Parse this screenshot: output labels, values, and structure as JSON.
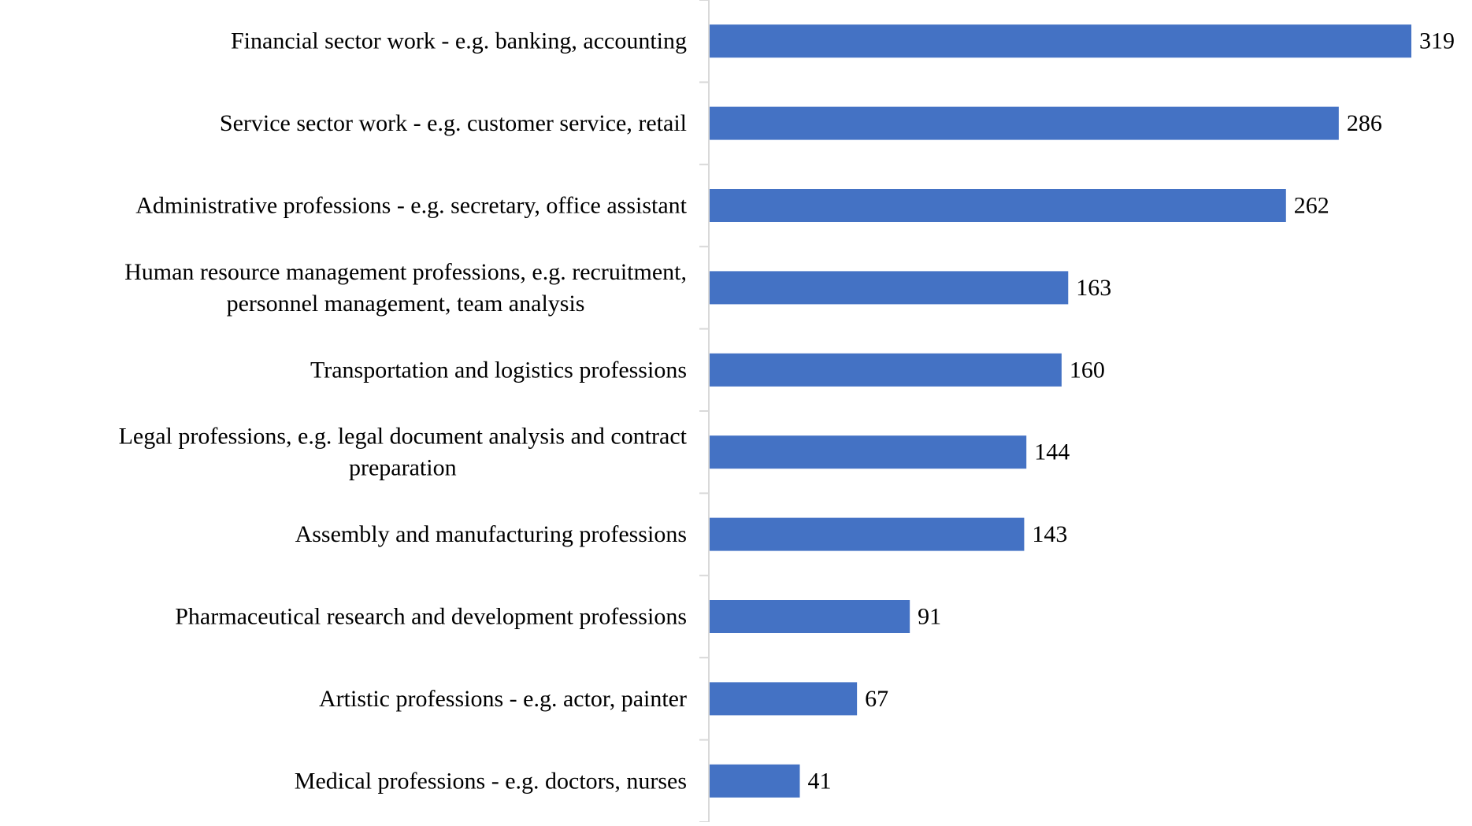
{
  "chart_data": {
    "type": "bar",
    "orientation": "horizontal",
    "title": "",
    "xlabel": "",
    "ylabel": "",
    "grid": false,
    "legend": "none",
    "bar_color": "#4472C4",
    "xlim": [
      0,
      319
    ],
    "categories": [
      [
        "Financial sector work - e.g. banking, accounting"
      ],
      [
        "Service sector work - e.g. customer service, retail"
      ],
      [
        "Administrative professions - e.g. secretary, office assistant"
      ],
      [
        "Human resource management professions, e.g. recruitment,",
        "personnel management, team analysis"
      ],
      [
        "Transportation and logistics professions"
      ],
      [
        "Legal professions, e.g. legal document analysis and contract",
        "preparation"
      ],
      [
        "Assembly and manufacturing professions"
      ],
      [
        "Pharmaceutical research and development professions"
      ],
      [
        "Artistic professions - e.g. actor, painter"
      ],
      [
        "Medical professions - e.g. doctors, nurses"
      ]
    ],
    "values": [
      319,
      286,
      262,
      163,
      160,
      144,
      143,
      91,
      67,
      41
    ]
  }
}
